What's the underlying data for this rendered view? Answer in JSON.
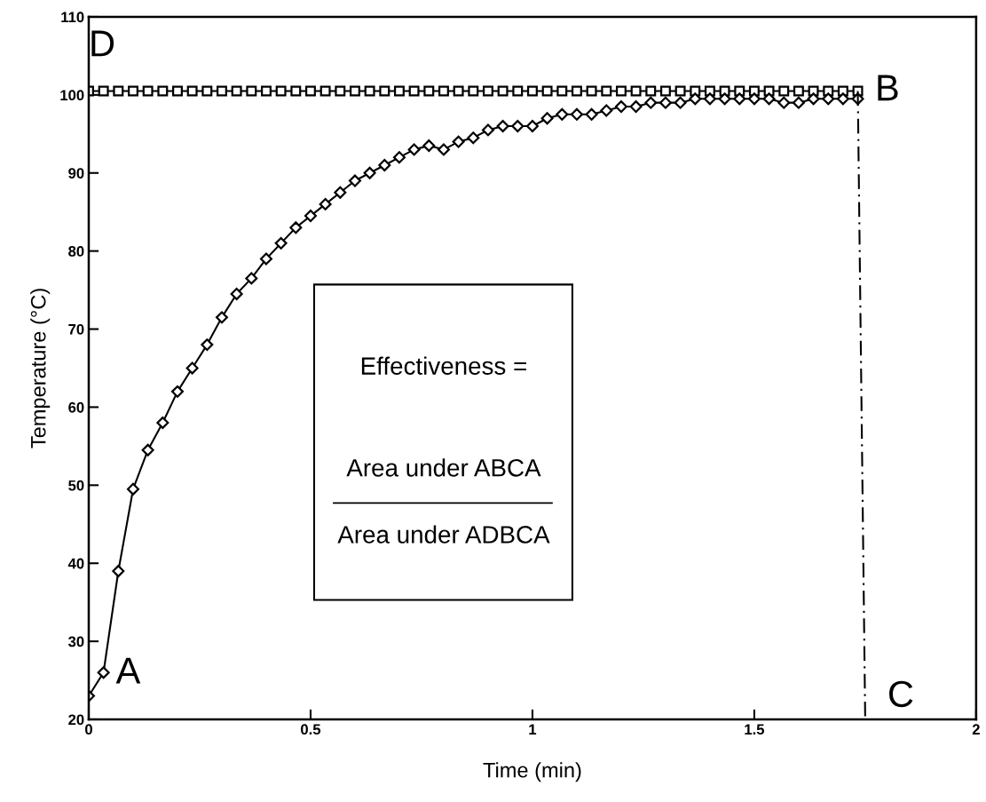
{
  "chart_data": {
    "type": "line",
    "xlabel": "Time (min)",
    "ylabel": "Temperature (°C)",
    "xlim": [
      0,
      2
    ],
    "xticks": [
      0,
      0.5,
      1,
      1.5,
      2
    ],
    "ylim": [
      20,
      110
    ],
    "yticks": [
      20,
      30,
      40,
      50,
      60,
      70,
      80,
      90,
      100,
      110
    ],
    "grid": false,
    "x": [
      0,
      0.0333,
      0.0667,
      0.1,
      0.1333,
      0.1667,
      0.2,
      0.2333,
      0.2667,
      0.3,
      0.3333,
      0.3667,
      0.4,
      0.4333,
      0.4667,
      0.5,
      0.5333,
      0.5667,
      0.6,
      0.6333,
      0.6667,
      0.7,
      0.7333,
      0.7667,
      0.8,
      0.8333,
      0.8667,
      0.9,
      0.9333,
      0.9667,
      1,
      1.0333,
      1.0667,
      1.1,
      1.1333,
      1.1667,
      1.2,
      1.2333,
      1.2667,
      1.3,
      1.3333,
      1.3667,
      1.4,
      1.4333,
      1.4667,
      1.5,
      1.5333,
      1.5667,
      1.6,
      1.6333,
      1.6667,
      1.7,
      1.7333
    ],
    "series": [
      {
        "color": "#000000",
        "marker": "square",
        "line_style": "solid",
        "values": [
          100.5,
          100.5,
          100.5,
          100.5,
          100.5,
          100.5,
          100.5,
          100.5,
          100.5,
          100.5,
          100.5,
          100.5,
          100.5,
          100.5,
          100.5,
          100.5,
          100.5,
          100.5,
          100.5,
          100.5,
          100.5,
          100.5,
          100.5,
          100.5,
          100.5,
          100.5,
          100.5,
          100.5,
          100.5,
          100.5,
          100.5,
          100.5,
          100.5,
          100.5,
          100.5,
          100.5,
          100.5,
          100.5,
          100.5,
          100.5,
          100.5,
          100.5,
          100.5,
          100.5,
          100.5,
          100.5,
          100.5,
          100.5,
          100.5,
          100.5,
          100.5,
          100.5,
          100.5
        ]
      },
      {
        "color": "#000000",
        "marker": "diamond",
        "line_style": "solid",
        "values": [
          23,
          26,
          39,
          49.5,
          54.5,
          58,
          62,
          65,
          68,
          71.5,
          74.5,
          76.5,
          79,
          81,
          83,
          84.5,
          86,
          87.5,
          89,
          90,
          91,
          92,
          93,
          93.5,
          93,
          94,
          94.5,
          95.5,
          96,
          96,
          96,
          97,
          97.5,
          97.5,
          97.5,
          98,
          98.5,
          98.5,
          99,
          99,
          99,
          99.5,
          99.5,
          99.5,
          99.5,
          99.5,
          99.5,
          99,
          99,
          99.5,
          99.5,
          99.5,
          99.5
        ]
      },
      {
        "color": "#000000",
        "marker": "none",
        "line_style": "dashed",
        "x": [
          1.7333,
          1.75
        ],
        "values": [
          100.5,
          20
        ]
      }
    ],
    "annotations": [
      {
        "text": "A",
        "x": 0,
        "y": 23
      },
      {
        "text": "B",
        "x": 1.7333,
        "y": 100.5
      },
      {
        "text": "C",
        "x": 1.75,
        "y": 20
      },
      {
        "text": "D",
        "x": 0,
        "y": 100.5
      },
      "Effectiveness =",
      "Area under ABCA",
      "Area under ADBCA"
    ]
  }
}
